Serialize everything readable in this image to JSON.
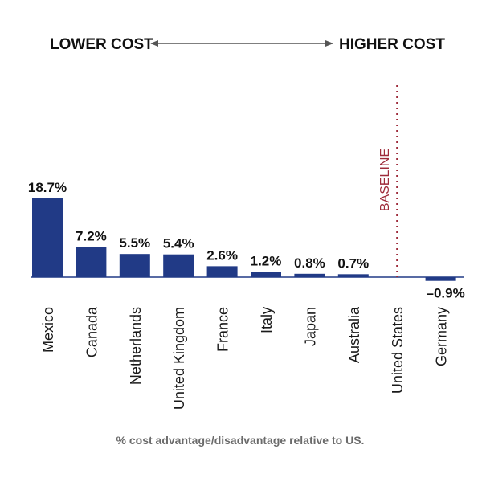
{
  "chart_data": {
    "type": "bar",
    "categories": [
      "Mexico",
      "Canada",
      "Netherlands",
      "United Kingdom",
      "France",
      "Italy",
      "Japan",
      "Australia",
      "United States",
      "Germany"
    ],
    "values": [
      18.7,
      7.2,
      5.5,
      5.4,
      2.6,
      1.2,
      0.8,
      0.7,
      0,
      -0.9
    ],
    "data_labels": [
      "18.7%",
      "7.2%",
      "5.5%",
      "5.4%",
      "2.6%",
      "1.2%",
      "0.8%",
      "0.7%",
      "",
      "–0.9%"
    ],
    "left_header": "LOWER COST",
    "right_header": "HIGHER COST",
    "baseline_label": "BASELINE",
    "baseline_category": "United States",
    "caption": "% cost advantage/disadvantage relative to US.",
    "title": "",
    "xlabel": "",
    "ylabel": "",
    "ylim": [
      -1,
      19
    ],
    "grid": false,
    "legend": "none"
  },
  "colors": {
    "bar": "#213a86",
    "axis": "#213a86",
    "baseline": "#9e2a3a",
    "text": "#111111",
    "caption": "#6b6b6b",
    "arrow": "#555555"
  }
}
